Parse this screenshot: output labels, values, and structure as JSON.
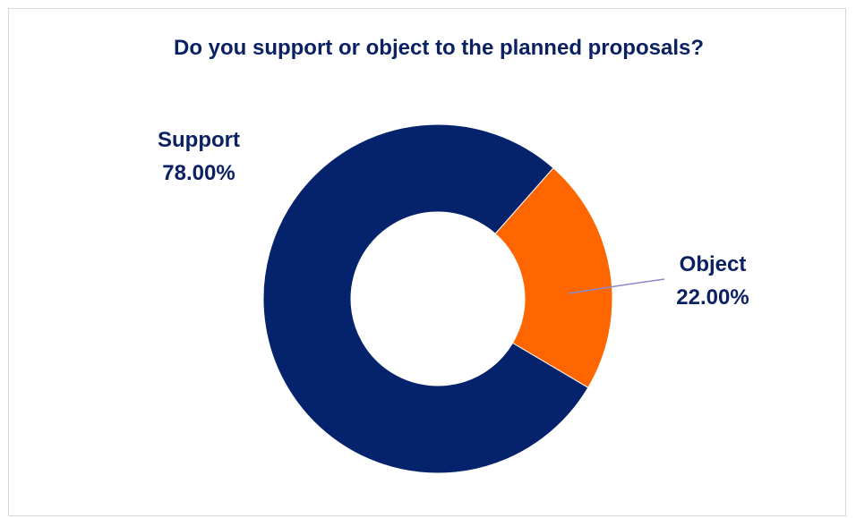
{
  "chart_data": {
    "type": "pie",
    "title": "Do you support or object to the planned proposals?",
    "categories": [
      "Support",
      "Object"
    ],
    "values": [
      78.0,
      22.0
    ],
    "value_labels": [
      "78.00%",
      "22.00%"
    ],
    "colors": [
      "#05236d",
      "#ff6600"
    ],
    "donut": true,
    "legend": "none"
  },
  "colors": {
    "title": "#0b2163",
    "labels": "#0b2163",
    "leader_line": "#8d88c9",
    "frame": "#d9d9d9"
  }
}
